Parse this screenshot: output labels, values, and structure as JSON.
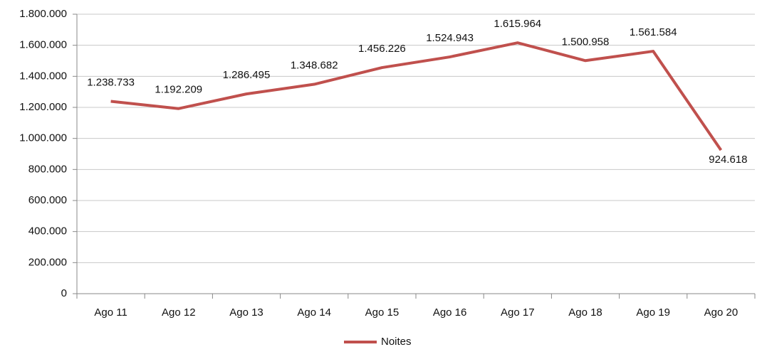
{
  "chart_data": {
    "type": "line",
    "categories": [
      "Ago 11",
      "Ago 12",
      "Ago 13",
      "Ago 14",
      "Ago 15",
      "Ago 16",
      "Ago 17",
      "Ago 18",
      "Ago 19",
      "Ago 20"
    ],
    "series": [
      {
        "name": "Noites",
        "color": "#c0504d",
        "values": [
          1238733,
          1192209,
          1286495,
          1348682,
          1456226,
          1524943,
          1615964,
          1500958,
          1561584,
          924618
        ],
        "value_labels": [
          "1.238.733",
          "1.192.209",
          "1.286.495",
          "1.348.682",
          "1.456.226",
          "1.524.943",
          "1.615.964",
          "1.500.958",
          "1.561.584",
          "924.618"
        ]
      }
    ],
    "ylim": [
      0,
      1800000
    ],
    "yticks": [
      0,
      {
        "value": 200000,
        "label": "200.000"
      },
      {
        "value": 400000,
        "label": "400.000"
      },
      {
        "value": 600000,
        "label": "600.000"
      },
      {
        "value": 800000,
        "label": "800.000"
      },
      {
        "value": 1000000,
        "label": "1.000.000"
      },
      {
        "value": 1200000,
        "label": "1.200.000"
      },
      {
        "value": 1400000,
        "label": "1.400.000"
      },
      {
        "value": 1600000,
        "label": "1.600.000"
      },
      {
        "value": 1800000,
        "label": "1.800.000"
      }
    ],
    "grid": true,
    "legend": "bottom"
  }
}
